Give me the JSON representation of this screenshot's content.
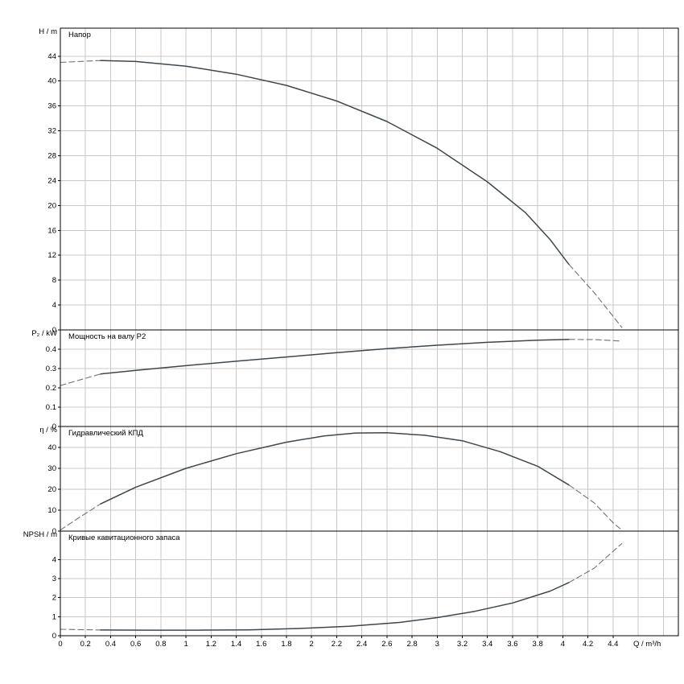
{
  "figure_title": "",
  "colors": {
    "background": "#ffffff",
    "border": "#000000",
    "grid": "#c8c8c8",
    "curve_solid": "#3d474d",
    "curve_dashed": "#6b7478",
    "text": "#000000"
  },
  "chart_data": {
    "type": "line",
    "x_axis": {
      "label": "Q / m³/h",
      "lim": [
        0,
        4.92
      ],
      "tick_values": [
        0,
        0.2,
        0.4,
        0.6,
        0.8,
        1,
        1.2,
        1.4,
        1.6,
        1.8,
        2,
        2.2,
        2.4,
        2.6,
        2.8,
        3,
        3.2,
        3.4,
        3.6,
        3.8,
        4,
        4.2,
        4.4
      ],
      "tick_labels": [
        "0",
        "0.2",
        "0.4",
        "0.6",
        "0.8",
        "1",
        "1.2",
        "1.4",
        "1.6",
        "1.8",
        "2",
        "2.2",
        "2.4",
        "2.6",
        "2.8",
        "3",
        "3.2",
        "3.4",
        "3.6",
        "3.8",
        "4",
        "4.2",
        "4.4"
      ],
      "grid": true,
      "grid_step": 0.2
    },
    "panels": [
      {
        "title": "Напор",
        "ylabel": "H / m",
        "ylim": [
          0,
          48.5
        ],
        "ytick_values": [
          0,
          4,
          8,
          12,
          16,
          20,
          24,
          28,
          32,
          36,
          40,
          44
        ],
        "ytick_labels": [
          "0",
          "4",
          "8",
          "12",
          "16",
          "20",
          "24",
          "28",
          "32",
          "36",
          "40",
          "44"
        ],
        "series": [
          {
            "name": "head-extrapolation-left",
            "dash": true,
            "points": [
              [
                0,
                43.0
              ],
              [
                0.32,
                43.3
              ]
            ]
          },
          {
            "name": "head-curve",
            "dash": false,
            "points": [
              [
                0.32,
                43.3
              ],
              [
                0.6,
                43.15
              ],
              [
                1.0,
                42.4
              ],
              [
                1.4,
                41.1
              ],
              [
                1.8,
                39.3
              ],
              [
                2.2,
                36.8
              ],
              [
                2.6,
                33.5
              ],
              [
                3.0,
                29.2
              ],
              [
                3.4,
                23.8
              ],
              [
                3.7,
                18.9
              ],
              [
                3.9,
                14.5
              ],
              [
                4.05,
                10.5
              ]
            ]
          },
          {
            "name": "head-extrapolation-right",
            "dash": true,
            "points": [
              [
                4.05,
                10.5
              ],
              [
                4.25,
                6
              ],
              [
                4.47,
                0.4
              ]
            ]
          }
        ]
      },
      {
        "title": "Мощность на валу P2",
        "ylabel": "P₂ / kW",
        "ylim": [
          0,
          0.5
        ],
        "ytick_values": [
          0,
          0.1,
          0.2,
          0.3,
          0.4
        ],
        "ytick_labels": [
          "0",
          "0.1",
          "0.2",
          "0.3",
          "0.4"
        ],
        "series": [
          {
            "name": "power-extrapolation-left",
            "dash": true,
            "points": [
              [
                0,
                0.212
              ],
              [
                0.32,
                0.272
              ]
            ]
          },
          {
            "name": "power-curve",
            "dash": false,
            "points": [
              [
                0.32,
                0.272
              ],
              [
                0.6,
                0.291
              ],
              [
                1.0,
                0.315
              ],
              [
                1.4,
                0.338
              ],
              [
                1.8,
                0.36
              ],
              [
                2.2,
                0.382
              ],
              [
                2.6,
                0.403
              ],
              [
                3.0,
                0.421
              ],
              [
                3.4,
                0.436
              ],
              [
                3.8,
                0.447
              ],
              [
                4.05,
                0.451
              ]
            ]
          },
          {
            "name": "power-extrapolation-right",
            "dash": true,
            "points": [
              [
                4.05,
                0.451
              ],
              [
                4.25,
                0.45
              ],
              [
                4.47,
                0.442
              ]
            ]
          }
        ]
      },
      {
        "title": "Гидравлический КПД",
        "ylabel": "η / %",
        "ylim": [
          0,
          50
        ],
        "ytick_values": [
          0,
          10,
          20,
          30,
          40
        ],
        "ytick_labels": [
          "0",
          "10",
          "20",
          "30",
          "40"
        ],
        "series": [
          {
            "name": "efficiency-extrapolation-left",
            "dash": true,
            "points": [
              [
                0,
                0.5
              ],
              [
                0.15,
                6.5
              ],
              [
                0.32,
                13
              ]
            ]
          },
          {
            "name": "efficiency-curve",
            "dash": false,
            "points": [
              [
                0.32,
                13
              ],
              [
                0.6,
                21
              ],
              [
                1.0,
                30
              ],
              [
                1.4,
                37
              ],
              [
                1.8,
                42.5
              ],
              [
                2.1,
                45.5
              ],
              [
                2.35,
                46.9
              ],
              [
                2.6,
                47
              ],
              [
                2.9,
                45.8
              ],
              [
                3.2,
                43.2
              ],
              [
                3.5,
                38
              ],
              [
                3.8,
                31
              ],
              [
                4.05,
                22
              ]
            ]
          },
          {
            "name": "efficiency-extrapolation-right",
            "dash": true,
            "points": [
              [
                4.05,
                22
              ],
              [
                4.25,
                13.5
              ],
              [
                4.4,
                4
              ],
              [
                4.47,
                0.5
              ]
            ]
          }
        ]
      },
      {
        "title": "Кривые кавитационного запаса",
        "ylabel": "NPSH / m",
        "ylim": [
          0,
          5.5
        ],
        "ytick_values": [
          0,
          1,
          2,
          3,
          4
        ],
        "ytick_labels": [
          "0",
          "1",
          "2",
          "3",
          "4"
        ],
        "series": [
          {
            "name": "npsh-extrapolation-left",
            "dash": true,
            "points": [
              [
                0,
                0.34
              ],
              [
                0.32,
                0.3
              ]
            ]
          },
          {
            "name": "npsh-curve",
            "dash": false,
            "points": [
              [
                0.32,
                0.3
              ],
              [
                0.7,
                0.29
              ],
              [
                1.1,
                0.29
              ],
              [
                1.5,
                0.31
              ],
              [
                1.9,
                0.38
              ],
              [
                2.3,
                0.5
              ],
              [
                2.7,
                0.7
              ],
              [
                3.0,
                0.95
              ],
              [
                3.3,
                1.28
              ],
              [
                3.6,
                1.72
              ],
              [
                3.9,
                2.35
              ],
              [
                4.05,
                2.8
              ]
            ]
          },
          {
            "name": "npsh-extrapolation-right",
            "dash": true,
            "points": [
              [
                4.05,
                2.8
              ],
              [
                4.25,
                3.55
              ],
              [
                4.47,
                4.85
              ]
            ]
          }
        ]
      }
    ]
  }
}
